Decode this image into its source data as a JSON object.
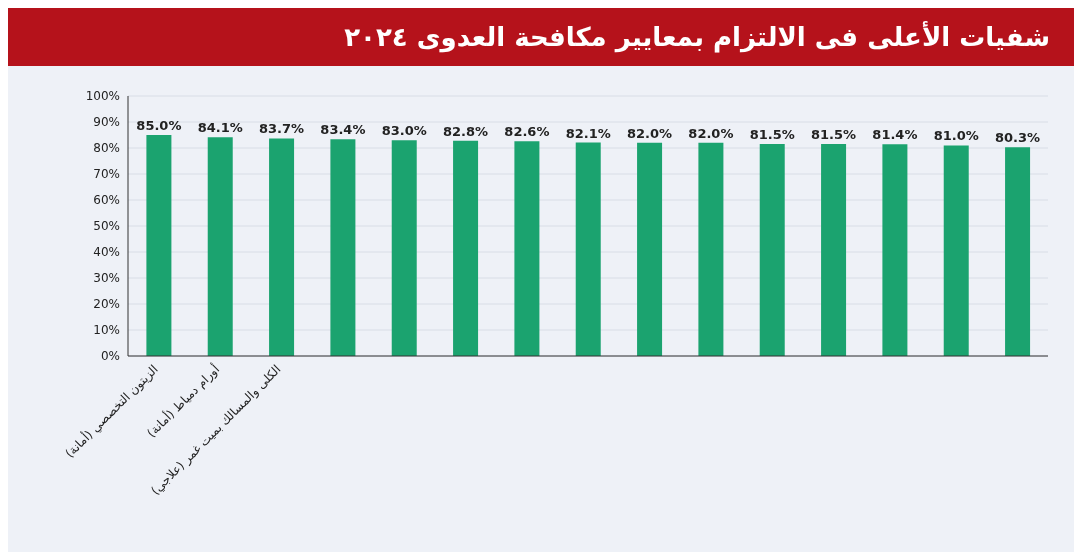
{
  "chart_data": {
    "type": "bar",
    "title": "شفيات الأعلى فى الالتزام بمعايير مكافحة العدوى ٢٠٢٤",
    "categories": [
      "الزيتون التخصصي (أمانة)",
      "أورام دمياط (أمانة)",
      "الكلى والمسالك بميت غمر (علاجي)",
      null,
      null,
      null,
      null,
      null,
      null,
      null,
      null,
      null,
      null,
      null,
      null
    ],
    "values": [
      85.0,
      84.1,
      83.7,
      83.4,
      83.0,
      82.8,
      82.6,
      82.1,
      82.0,
      82.0,
      81.5,
      81.5,
      81.4,
      81.0,
      80.3
    ],
    "value_labels": [
      "85.0%",
      "84.1%",
      "83.7%",
      "83.4%",
      "83.0%",
      "82.8%",
      "82.6%",
      "82.1%",
      "82.0%",
      "82.0%",
      "81.5%",
      "81.5%",
      "81.4%",
      "81.0%",
      "80.3%"
    ],
    "color": "#1ba36f",
    "ylim": [
      0,
      100
    ],
    "yticks": [
      {
        "value": 0,
        "label": "0%"
      },
      {
        "value": 10,
        "label": "10%"
      },
      {
        "value": 20,
        "label": "20%"
      },
      {
        "value": 30,
        "label": "30%"
      },
      {
        "value": 40,
        "label": "40%"
      },
      {
        "value": 50,
        "label": "50%"
      },
      {
        "value": 60,
        "label": "60%"
      },
      {
        "value": 70,
        "label": "70%"
      },
      {
        "value": 80,
        "label": "80%"
      },
      {
        "value": 90,
        "label": "90%"
      },
      {
        "value": 100,
        "label": "100%"
      }
    ],
    "grid": "y"
  }
}
